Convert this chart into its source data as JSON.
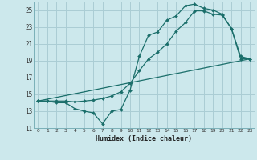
{
  "xlabel": "Humidex (Indice chaleur)",
  "bg_color": "#cce8ec",
  "grid_color": "#aacdd4",
  "line_color": "#1a6e6a",
  "xlim": [
    -0.5,
    23.5
  ],
  "ylim": [
    11,
    26
  ],
  "xticks": [
    0,
    1,
    2,
    3,
    4,
    5,
    6,
    7,
    8,
    9,
    10,
    11,
    12,
    13,
    14,
    15,
    16,
    17,
    18,
    19,
    20,
    21,
    22,
    23
  ],
  "yticks": [
    11,
    13,
    15,
    17,
    19,
    21,
    23,
    25
  ],
  "line1_x": [
    0,
    1,
    2,
    3,
    4,
    5,
    6,
    7,
    8,
    9,
    10,
    11,
    12,
    13,
    14,
    15,
    16,
    17,
    18,
    19,
    20,
    21,
    22,
    23
  ],
  "line1_y": [
    14.2,
    14.2,
    14.0,
    14.0,
    13.3,
    13.0,
    12.8,
    11.5,
    13.0,
    13.2,
    15.5,
    19.5,
    22.0,
    22.4,
    23.8,
    24.3,
    25.5,
    25.7,
    25.2,
    25.0,
    24.5,
    22.8,
    19.2,
    19.2
  ],
  "line2_x": [
    0,
    1,
    2,
    3,
    4,
    5,
    6,
    7,
    8,
    9,
    10,
    11,
    12,
    13,
    14,
    15,
    16,
    17,
    18,
    19,
    20,
    21,
    22,
    23
  ],
  "line2_y": [
    14.2,
    14.2,
    14.2,
    14.2,
    14.1,
    14.2,
    14.3,
    14.5,
    14.8,
    15.3,
    16.3,
    17.8,
    19.2,
    20.0,
    21.0,
    22.5,
    23.5,
    24.9,
    24.9,
    24.5,
    24.4,
    22.8,
    19.5,
    19.2
  ],
  "line3_x": [
    0,
    23
  ],
  "line3_y": [
    14.2,
    19.2
  ]
}
